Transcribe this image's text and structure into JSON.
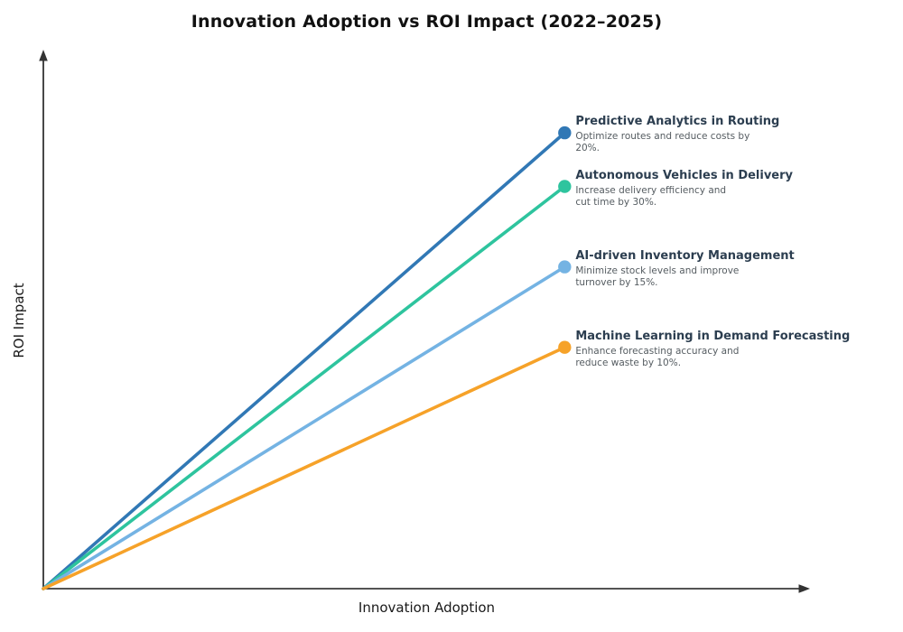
{
  "page": {
    "background_color": "#ffffff"
  },
  "chart_data": {
    "type": "line",
    "title": "Innovation Adoption vs ROI Impact (2022–2025)",
    "xlabel": "Innovation Adoption",
    "ylabel": "ROI Impact",
    "grid": false,
    "ticks": "none",
    "legend": "none",
    "axis_color": "#1a1a1a",
    "axis_arrows": true,
    "x_range_norm": [
      0,
      1
    ],
    "y_range_norm": [
      0,
      1
    ],
    "annotation_title_color": "#2c3e50",
    "annotation_desc_color": "#555c61",
    "series": [
      {
        "name": "Predictive Analytics in Routing",
        "desc_lines": [
          "Optimize routes and reduce costs by",
          "20%."
        ],
        "color": "#3178b5",
        "start": [
          0,
          0
        ],
        "end": [
          0.68,
          0.85
        ]
      },
      {
        "name": "Autonomous Vehicles in Delivery",
        "desc_lines": [
          "Increase delivery efficiency and",
          "cut time by 30%."
        ],
        "color": "#2ec49e",
        "start": [
          0,
          0
        ],
        "end": [
          0.68,
          0.75
        ]
      },
      {
        "name": "AI-driven Inventory Management",
        "desc_lines": [
          "Minimize stock levels and improve",
          "turnover by 15%."
        ],
        "color": "#74b3e3",
        "start": [
          0,
          0
        ],
        "end": [
          0.68,
          0.6
        ]
      },
      {
        "name": "Machine Learning in Demand Forecasting",
        "desc_lines": [
          "Enhance forecasting accuracy and",
          "reduce waste by 10%."
        ],
        "color": "#f6a229",
        "start": [
          0,
          0
        ],
        "end": [
          0.68,
          0.45
        ]
      }
    ]
  }
}
